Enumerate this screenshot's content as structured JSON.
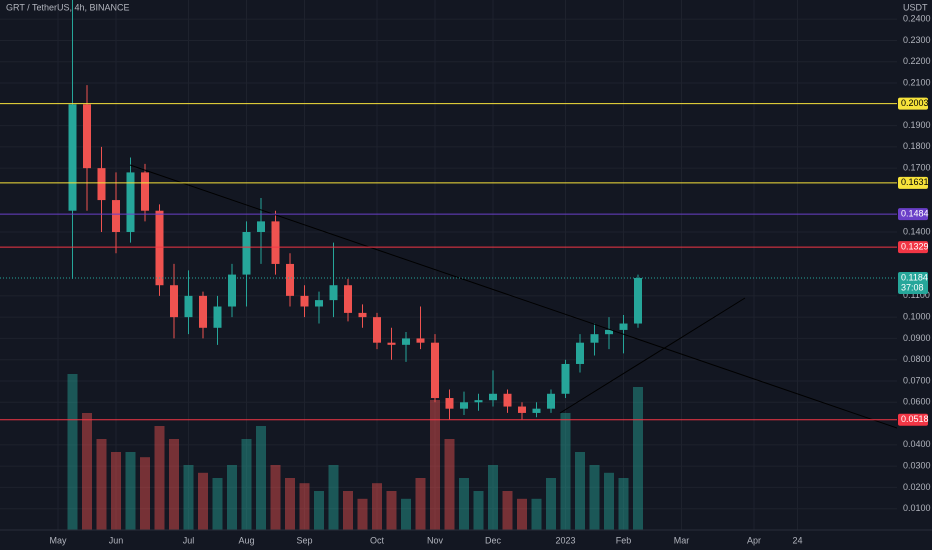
{
  "chart_data": {
    "type": "candlestick",
    "title": "GRT / TetherUS, 4h, BINANCE",
    "unit": "USDT",
    "categories": [
      "May",
      null,
      null,
      null,
      "Jun",
      null,
      null,
      null,
      null,
      "Jul",
      null,
      null,
      null,
      "Aug",
      null,
      null,
      null,
      "Sep",
      null,
      null,
      null,
      null,
      "Oct",
      null,
      null,
      null,
      "Nov",
      null,
      null,
      null,
      "Dec",
      null,
      null,
      null,
      null,
      "2023",
      null,
      null,
      null,
      "Feb",
      null,
      null,
      null,
      "Mar",
      null,
      null,
      null,
      null,
      "Apr",
      null,
      null,
      "24"
    ],
    "open": [
      null,
      0.15,
      0.2,
      0.17,
      0.155,
      0.14,
      0.168,
      0.15,
      0.115,
      0.1,
      0.11,
      0.095,
      0.105,
      0.12,
      0.14,
      0.145,
      0.125,
      0.11,
      0.105,
      0.108,
      0.115,
      0.102,
      0.1,
      0.088,
      0.087,
      0.09,
      0.088,
      0.062,
      0.057,
      0.06,
      0.061,
      0.064,
      0.058,
      0.055,
      0.057,
      0.064,
      0.078,
      0.088,
      0.092,
      0.094,
      0.097,
      null,
      null,
      null,
      null,
      null,
      null,
      null,
      null,
      null,
      null,
      null
    ],
    "high": [
      null,
      0.249,
      0.209,
      0.18,
      0.168,
      0.175,
      0.172,
      0.153,
      0.125,
      0.122,
      0.112,
      0.11,
      0.125,
      0.145,
      0.156,
      0.15,
      0.13,
      0.115,
      0.112,
      0.135,
      0.118,
      0.106,
      0.102,
      0.095,
      0.093,
      0.105,
      0.092,
      0.066,
      0.065,
      0.064,
      0.075,
      0.066,
      0.06,
      0.06,
      0.066,
      0.08,
      0.092,
      0.097,
      0.1,
      0.101,
      0.12,
      null,
      null,
      null,
      null,
      null,
      null,
      null,
      null,
      null,
      null,
      null
    ],
    "low": [
      null,
      0.118,
      0.15,
      0.14,
      0.13,
      0.135,
      0.145,
      0.11,
      0.09,
      0.092,
      0.09,
      0.087,
      0.1,
      0.105,
      0.125,
      0.12,
      0.105,
      0.1,
      0.097,
      0.1,
      0.098,
      0.095,
      0.085,
      0.08,
      0.079,
      0.085,
      0.06,
      0.052,
      0.054,
      0.056,
      0.058,
      0.055,
      0.052,
      0.053,
      0.055,
      0.062,
      0.074,
      0.082,
      0.085,
      0.083,
      0.095,
      null,
      null,
      null,
      null,
      null,
      null,
      null,
      null,
      null,
      null,
      null
    ],
    "close": [
      null,
      0.2,
      0.17,
      0.155,
      0.14,
      0.168,
      0.15,
      0.115,
      0.1,
      0.11,
      0.095,
      0.105,
      0.12,
      0.14,
      0.145,
      0.125,
      0.11,
      0.105,
      0.108,
      0.115,
      0.102,
      0.1,
      0.088,
      0.087,
      0.09,
      0.088,
      0.062,
      0.057,
      0.06,
      0.061,
      0.064,
      0.058,
      0.055,
      0.057,
      0.064,
      0.078,
      0.088,
      0.092,
      0.094,
      0.097,
      0.1184,
      null,
      null,
      null,
      null,
      null,
      null,
      null,
      null,
      null,
      null,
      null
    ],
    "volume": [
      null,
      60,
      45,
      35,
      30,
      30,
      28,
      40,
      35,
      25,
      22,
      20,
      25,
      35,
      40,
      25,
      20,
      18,
      15,
      25,
      15,
      12,
      18,
      15,
      12,
      20,
      50,
      35,
      20,
      15,
      25,
      15,
      12,
      12,
      20,
      45,
      30,
      25,
      22,
      20,
      55,
      null,
      null,
      null,
      null,
      null,
      null,
      null,
      null,
      null,
      null,
      null
    ],
    "vlim": [
      0,
      100
    ],
    "up_color": "#26a69a",
    "down_color": "#ef5350",
    "ylim": [
      0,
      0.249
    ],
    "yticks": [
      {
        "value": 0.01,
        "label": "0.0100"
      },
      {
        "value": 0.02,
        "label": "0.0200"
      },
      {
        "value": 0.03,
        "label": "0.0300"
      },
      {
        "value": 0.04,
        "label": "0.0400"
      },
      {
        "value": 0.06,
        "label": "0.0600"
      },
      {
        "value": 0.07,
        "label": "0.0700"
      },
      {
        "value": 0.08,
        "label": "0.0800"
      },
      {
        "value": 0.09,
        "label": "0.0900"
      },
      {
        "value": 0.1,
        "label": "0.1000"
      },
      {
        "value": 0.11,
        "label": "0.1100"
      },
      {
        "value": 0.14,
        "label": "0.1400"
      },
      {
        "value": 0.17,
        "label": "0.1700"
      },
      {
        "value": 0.18,
        "label": "0.1800"
      },
      {
        "value": 0.19,
        "label": "0.1900"
      },
      {
        "value": 0.21,
        "label": "0.2100"
      },
      {
        "value": 0.22,
        "label": "0.2200"
      },
      {
        "value": 0.23,
        "label": "0.2300"
      },
      {
        "value": 0.24,
        "label": "0.2400"
      }
    ],
    "grid": true,
    "levels": [
      {
        "value": 0.2003,
        "color": "#f7e33b"
      },
      {
        "value": 0.1631,
        "color": "#f7e33b"
      },
      {
        "value": 0.1484,
        "color": "#6a3fc8"
      },
      {
        "value": 0.1329,
        "color": "#f23645"
      },
      {
        "value": 0.0518,
        "color": "#f23645"
      }
    ],
    "last_price": 0.1184,
    "countdown": "37:08"
  }
}
